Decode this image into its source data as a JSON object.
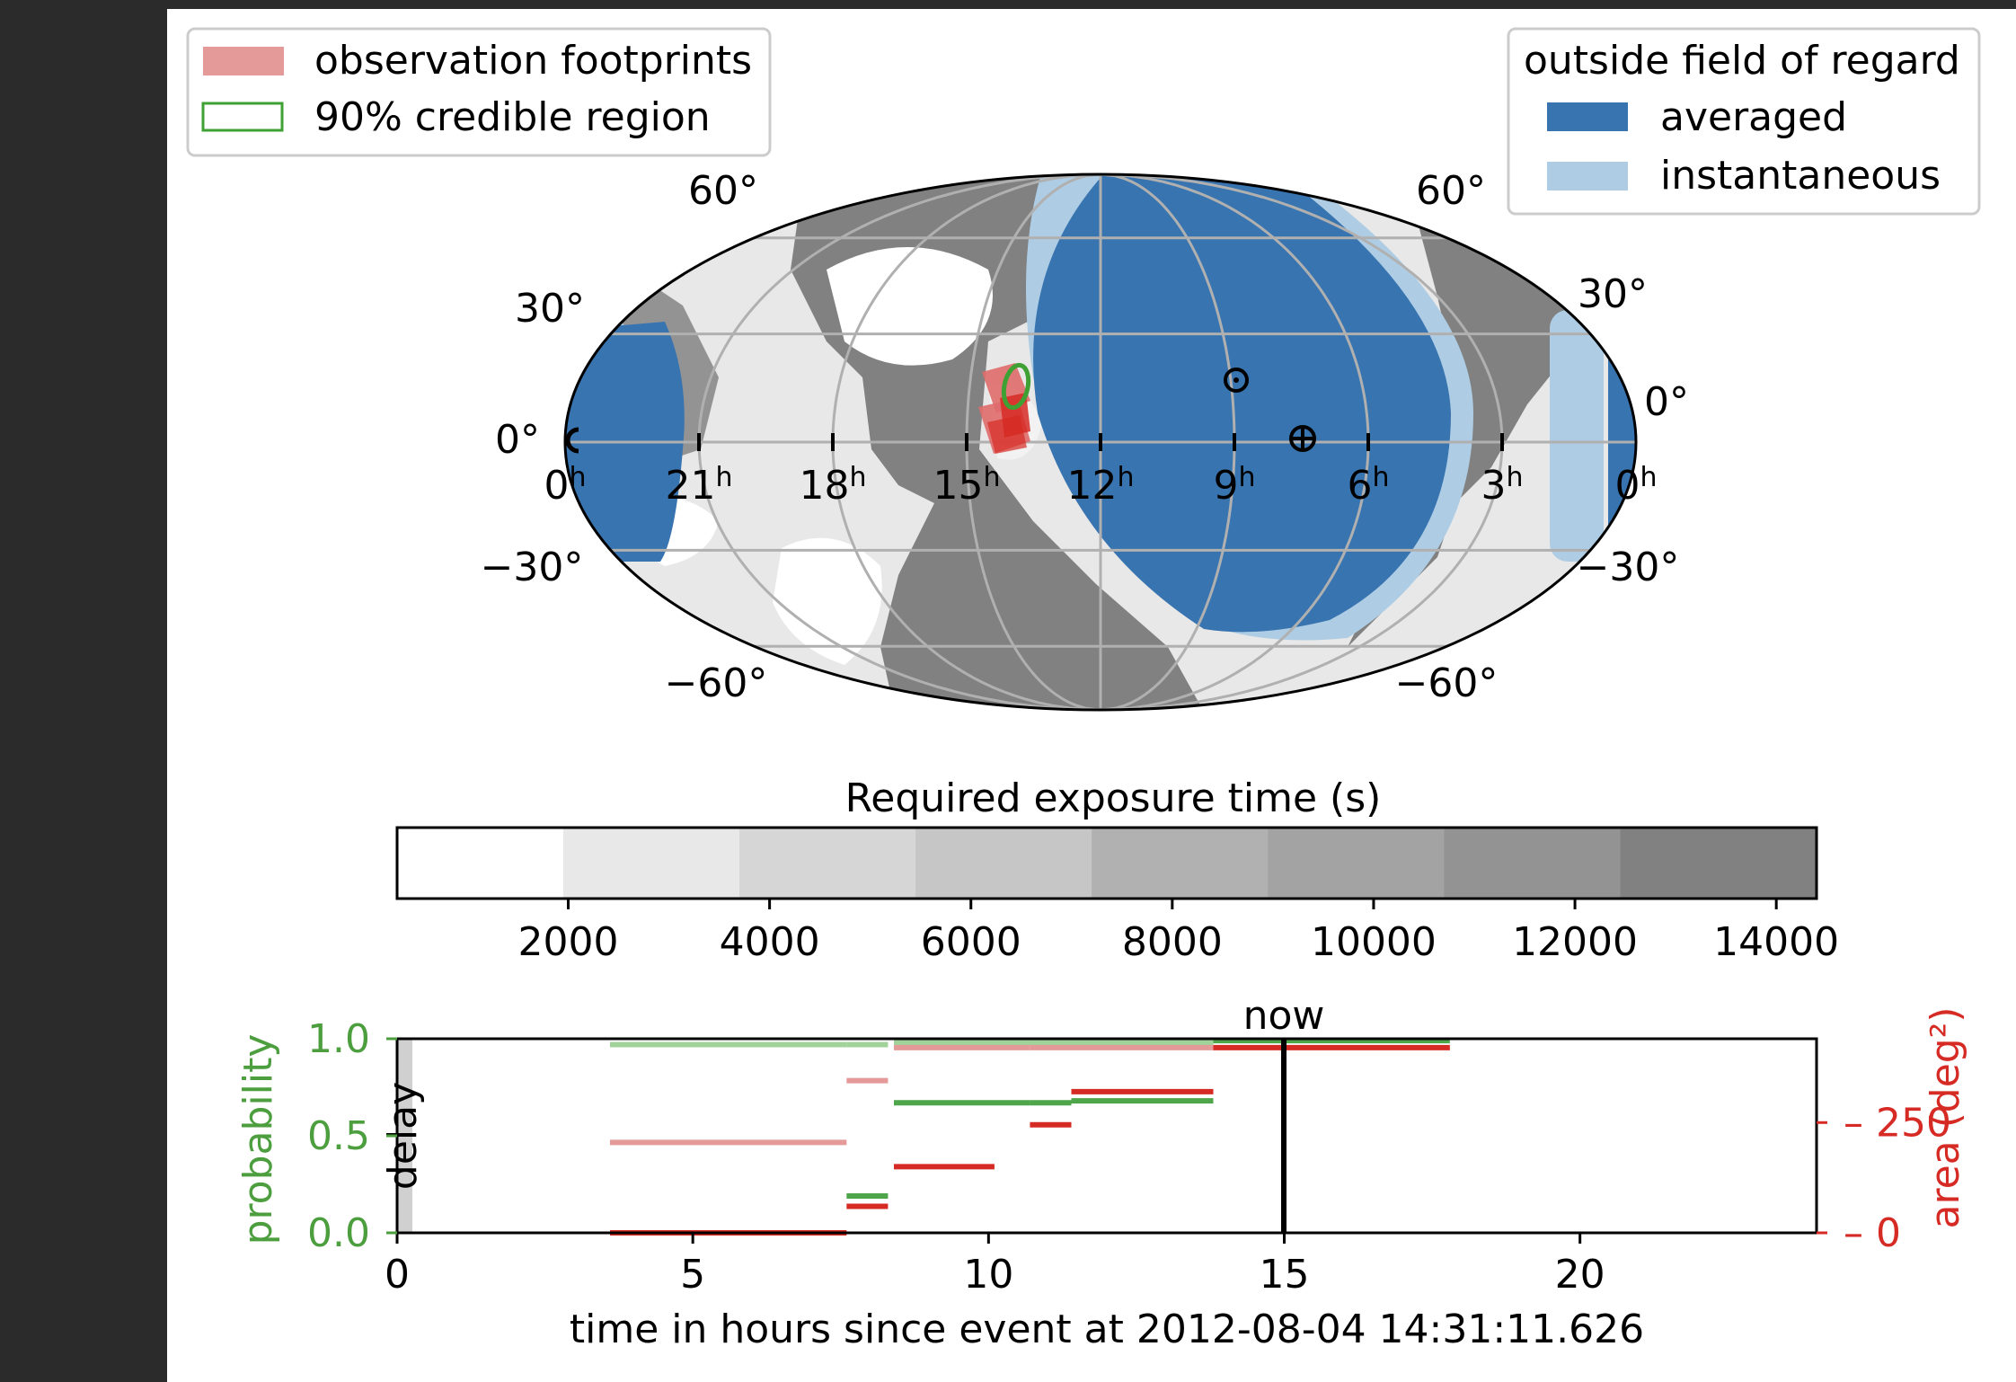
{
  "colors": {
    "outer_background": "#2b2b2b",
    "figure_background": "#ffffff",
    "averaged": "#3874b0",
    "instantaneous": "#aecde4",
    "footprint": "#e06c6c",
    "footprint_dark": "#d62b24",
    "credible_region": "#3fa034",
    "probability_axis": "#4c9e3e",
    "area_axis": "#d62b24",
    "probability_line": "#4fa54a",
    "probability_line_light": "#a1d29a",
    "area_line": "#d62b24",
    "area_line_light": "#e59a9a",
    "grid": "#b0b0b0",
    "gray_levels": [
      "#ffffff",
      "#e8e8e8",
      "#d6d6d6",
      "#c6c6c6",
      "#b1b1b1",
      "#a3a3a3",
      "#939393",
      "#818181"
    ]
  },
  "legend_left": {
    "items": [
      {
        "label": "observation footprints",
        "swatch": "filled"
      },
      {
        "label": "90% credible region",
        "swatch": "outline"
      }
    ]
  },
  "legend_right": {
    "title": "outside field of regard",
    "items": [
      {
        "label": "averaged"
      },
      {
        "label": "instantaneous"
      }
    ]
  },
  "sky_map": {
    "projection": "mollweide",
    "dec_labels_left": [
      "60°",
      "30°",
      "0°",
      "−30°",
      "−60°"
    ],
    "dec_labels_right": [
      "60°",
      "30°",
      "0°",
      "−30°",
      "−60°"
    ],
    "ra_labels": [
      {
        "hours": 24,
        "base": "0",
        "sup": "h"
      },
      {
        "hours": 21,
        "base": "21",
        "sup": "h"
      },
      {
        "hours": 18,
        "base": "18",
        "sup": "h"
      },
      {
        "hours": 15,
        "base": "15",
        "sup": "h"
      },
      {
        "hours": 12,
        "base": "12",
        "sup": "h"
      },
      {
        "hours": 9,
        "base": "9",
        "sup": "h"
      },
      {
        "hours": 6,
        "base": "6",
        "sup": "h"
      },
      {
        "hours": 3,
        "base": "3",
        "sup": "h"
      },
      {
        "hours": 0,
        "base": "0",
        "sup": "h"
      }
    ],
    "markers": [
      {
        "name": "moon-icon",
        "symbol": "circle-dot",
        "ra_hours": 8.9,
        "dec_deg": 3
      },
      {
        "name": "earth-icon",
        "symbol": "circle-plus",
        "ra_hours": 7.1,
        "dec_deg": 0
      }
    ]
  },
  "colorbar": {
    "title": "Required exposure time (s)",
    "ticks": [
      2000,
      4000,
      6000,
      8000,
      10000,
      12000,
      14000
    ],
    "range": [
      300,
      14400
    ],
    "bounds": [
      300,
      1950,
      3700,
      5450,
      7200,
      8950,
      10700,
      12450,
      14400
    ]
  },
  "timeline": {
    "xlabel": "time in hours since event at 2012-08-04 14:31:11.626",
    "ylabel_left": "probability",
    "ylabel_right": "area (deg²)",
    "xlim": [
      0,
      24
    ],
    "xticks": [
      0,
      5,
      10,
      15,
      20
    ],
    "yticks_left": [
      "0.0",
      "0.5",
      "1.0"
    ],
    "yticks_right": [
      "0",
      "250"
    ],
    "now_label": "now",
    "now_time": 15,
    "delay_label": "delay",
    "delay_span": [
      0,
      0.25
    ]
  },
  "chart_data": [
    {
      "type": "heatmap",
      "title": "Required exposure time (s)",
      "colorbar_ticks": [
        2000,
        4000,
        6000,
        8000,
        10000,
        12000,
        14000
      ],
      "colorbar_range": [
        300,
        14400
      ],
      "projection": "mollweide",
      "ra_ticks_hours": [
        0,
        3,
        6,
        9,
        12,
        15,
        18,
        21
      ],
      "dec_ticks_deg": [
        -60,
        -30,
        0,
        30,
        60
      ]
    },
    {
      "type": "line",
      "xlabel": "time in hours since event at 2012-08-04 14:31:11.626",
      "ylabel": "probability",
      "y2label": "area (deg²)",
      "xlim": [
        0,
        24
      ],
      "ylim": [
        0,
        1
      ],
      "y2lim": [
        0,
        440
      ],
      "series": [
        {
          "name": "probability",
          "axis": "left",
          "style": "dark",
          "segments": [
            {
              "x0": 7.6,
              "x1": 8.3,
              "y": 0.19
            },
            {
              "x0": 8.4,
              "x1": 10.7,
              "y": 0.67
            },
            {
              "x0": 10.7,
              "x1": 11.4,
              "y": 0.67
            },
            {
              "x0": 11.4,
              "x1": 13.8,
              "y": 0.68
            },
            {
              "x0": 13.8,
              "x1": 17.8,
              "y": 0.99
            }
          ]
        },
        {
          "name": "probability",
          "axis": "left",
          "style": "light",
          "segments": [
            {
              "x0": 3.6,
              "x1": 7.6,
              "y": 0.97
            },
            {
              "x0": 7.6,
              "x1": 8.3,
              "y": 0.97
            },
            {
              "x0": 8.4,
              "x1": 13.8,
              "y": 0.98
            }
          ]
        },
        {
          "name": "area",
          "axis": "right",
          "style": "dark",
          "segments": [
            {
              "x0": 3.6,
              "x1": 7.6,
              "y": 0
            },
            {
              "x0": 7.6,
              "x1": 8.3,
              "y": 60
            },
            {
              "x0": 8.4,
              "x1": 10.1,
              "y": 150
            },
            {
              "x0": 10.7,
              "x1": 11.4,
              "y": 245
            },
            {
              "x0": 11.4,
              "x1": 13.8,
              "y": 320
            },
            {
              "x0": 13.8,
              "x1": 17.8,
              "y": 420
            }
          ]
        },
        {
          "name": "area",
          "axis": "right",
          "style": "light",
          "segments": [
            {
              "x0": 3.6,
              "x1": 7.6,
              "y": 205
            },
            {
              "x0": 7.6,
              "x1": 8.3,
              "y": 345
            },
            {
              "x0": 8.4,
              "x1": 10.7,
              "y": 420
            },
            {
              "x0": 10.7,
              "x1": 13.8,
              "y": 420
            }
          ]
        }
      ]
    }
  ]
}
